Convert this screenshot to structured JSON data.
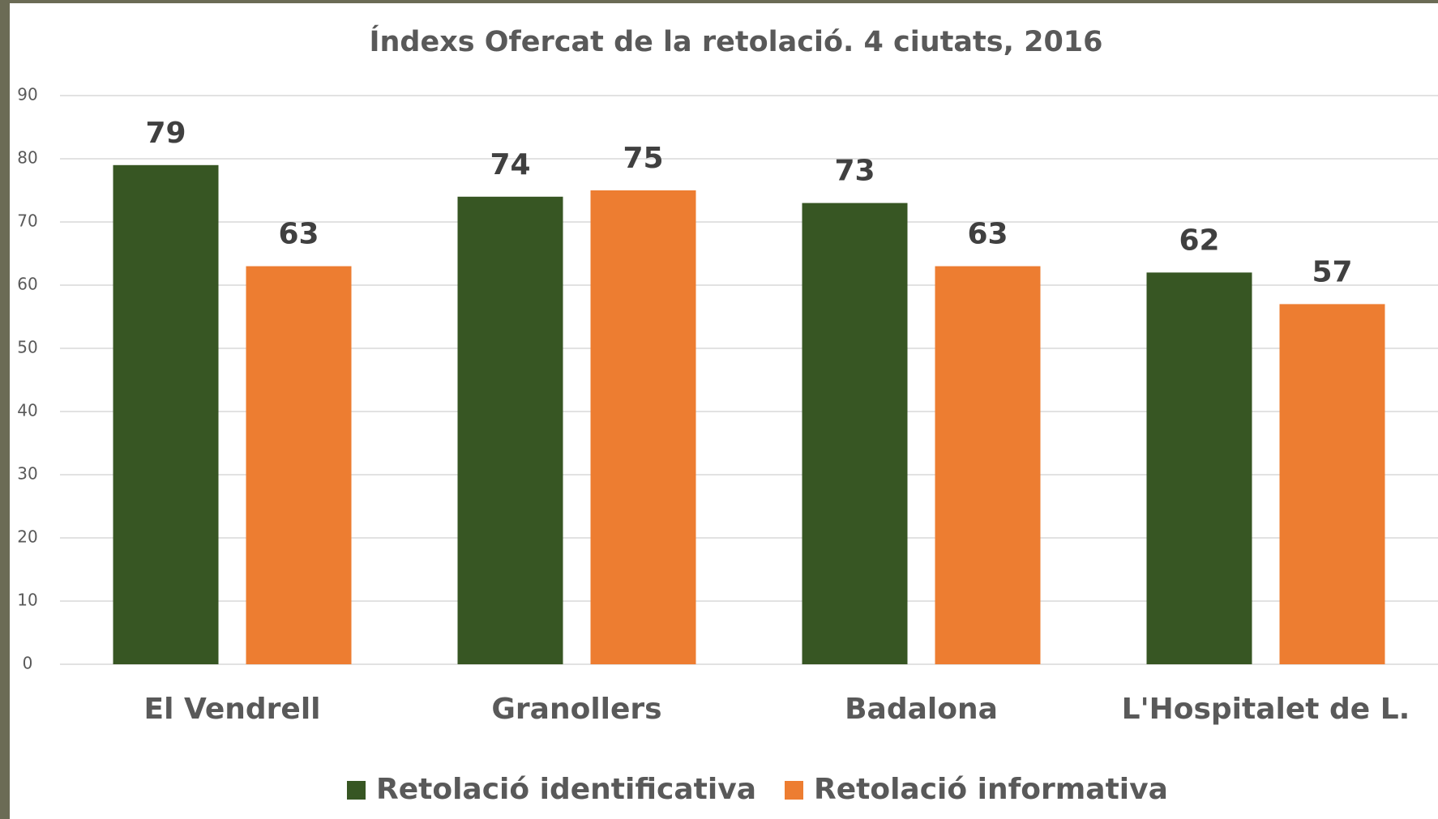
{
  "chart_data": {
    "type": "bar",
    "title": "Índexs Ofercat de la retolació. 4 ciutats, 2016",
    "categories": [
      "El Vendrell",
      "Granollers",
      "Badalona",
      "L'Hospitalet de L."
    ],
    "series": [
      {
        "name": "Retolació identificativa",
        "color": "#375623",
        "values": [
          79,
          74,
          73,
          62
        ]
      },
      {
        "name": "Retolació informativa",
        "color": "#ed7d31",
        "values": [
          63,
          75,
          63,
          57
        ]
      }
    ],
    "ylim": [
      0,
      90
    ],
    "yticks": [
      0,
      10,
      20,
      30,
      40,
      50,
      60,
      70,
      80,
      90
    ],
    "grid": true,
    "legend": "bottom"
  }
}
